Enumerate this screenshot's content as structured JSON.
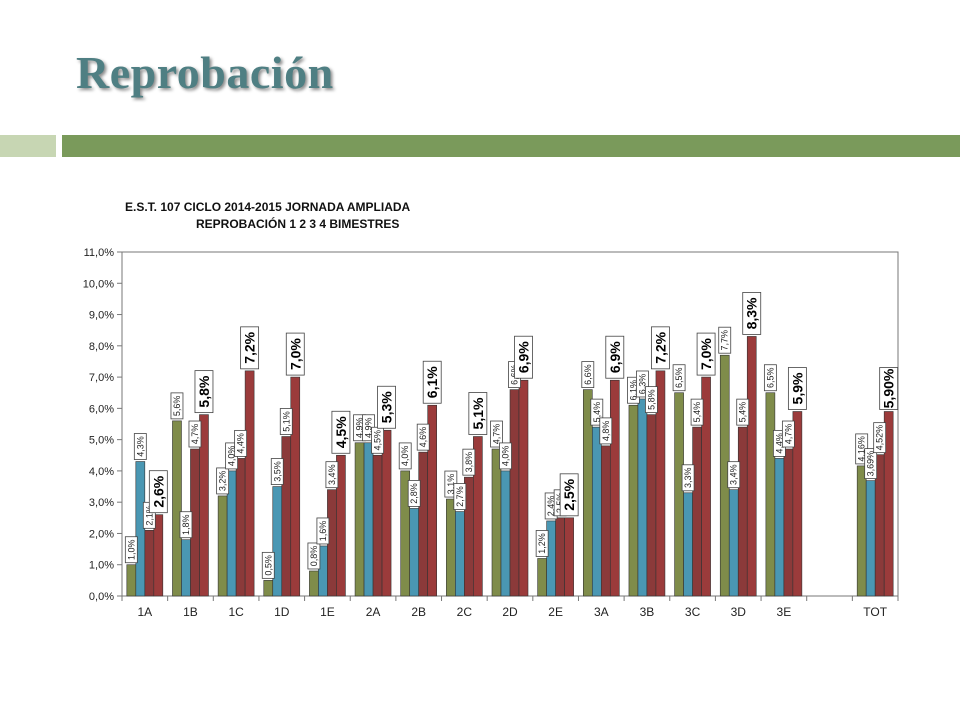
{
  "slide": {
    "title": "Reprobación"
  },
  "chart_data": {
    "type": "bar",
    "title": "E.S.T. 107 CICLO 2014-2015            JORNADA AMPLIADA",
    "subtitle": "REPROBACIÓN 1 2 3 4 BIMESTRES",
    "categories": [
      "1A",
      "1B",
      "1C",
      "1D",
      "1E",
      "2A",
      "2B",
      "2C",
      "2D",
      "2E",
      "3A",
      "3B",
      "3C",
      "3D",
      "3E",
      "",
      "TOT"
    ],
    "yticks": [
      "0,0%",
      "1,0%",
      "2,0%",
      "3,0%",
      "4,0%",
      "5,0%",
      "6,0%",
      "7,0%",
      "8,0%",
      "9,0%",
      "10,0%",
      "11,0%"
    ],
    "ylim": [
      0,
      11
    ],
    "grid": false,
    "colors": [
      "#7f8c4a",
      "#4a97b3",
      "#8b3a3a",
      "#9b3b3b"
    ],
    "series": [
      {
        "values": [
          1.0,
          5.6,
          3.2,
          0.5,
          0.8,
          4.9,
          4.0,
          3.1,
          4.7,
          1.2,
          6.6,
          6.1,
          6.5,
          7.7,
          6.5,
          null,
          4.16
        ],
        "labels": [
          "1,0%",
          "5,6%",
          "3,2%",
          "0,5%",
          "0,8%",
          "4,9%",
          "4,0%",
          "3,1%",
          "4,7%",
          "1,2%",
          "6,6%",
          "6,1%",
          "6,5%",
          "7,7%",
          "6,5%",
          "",
          "4,16%"
        ]
      },
      {
        "values": [
          4.3,
          1.8,
          4.0,
          3.5,
          1.6,
          4.9,
          2.8,
          2.7,
          4.0,
          2.4,
          5.4,
          6.3,
          3.3,
          3.4,
          4.4,
          null,
          3.69
        ],
        "labels": [
          "4,3%",
          "1,8%",
          "4,0%",
          "3,5%",
          "1,6%",
          "4,9%",
          "2,8%",
          "2,7%",
          "4,0%",
          "2,4%",
          "5,4%",
          "6,3%",
          "3,3%",
          "3,4%",
          "4,4%",
          "",
          "3,69%"
        ]
      },
      {
        "values": [
          2.1,
          4.7,
          4.4,
          5.1,
          3.4,
          4.5,
          4.6,
          3.8,
          6.6,
          2.5,
          4.8,
          5.8,
          5.4,
          5.4,
          4.7,
          null,
          4.52
        ],
        "labels": [
          "2,1%",
          "4,7%",
          "4,4%",
          "5,1%",
          "3,4%",
          "4,5%",
          "4,6%",
          "3,8%",
          "6,6%",
          "2,5%",
          "4,8%",
          "5,8%",
          "5,4%",
          "5,4%",
          "4,7%",
          "",
          "4,52%"
        ]
      },
      {
        "values": [
          2.6,
          5.8,
          7.2,
          7.0,
          4.5,
          5.3,
          6.1,
          5.1,
          6.9,
          2.5,
          6.9,
          7.2,
          7.0,
          8.3,
          5.9,
          null,
          5.9
        ],
        "labels": [
          "2,6%",
          "5,8%",
          "7,2%",
          "7,0%",
          "4,5%",
          "5,3%",
          "6,1%",
          "5,1%",
          "6,9%",
          "2,5%",
          "6,9%",
          "7,2%",
          "7,0%",
          "8,3%",
          "5,9%",
          "",
          "5,90%"
        ]
      }
    ]
  }
}
